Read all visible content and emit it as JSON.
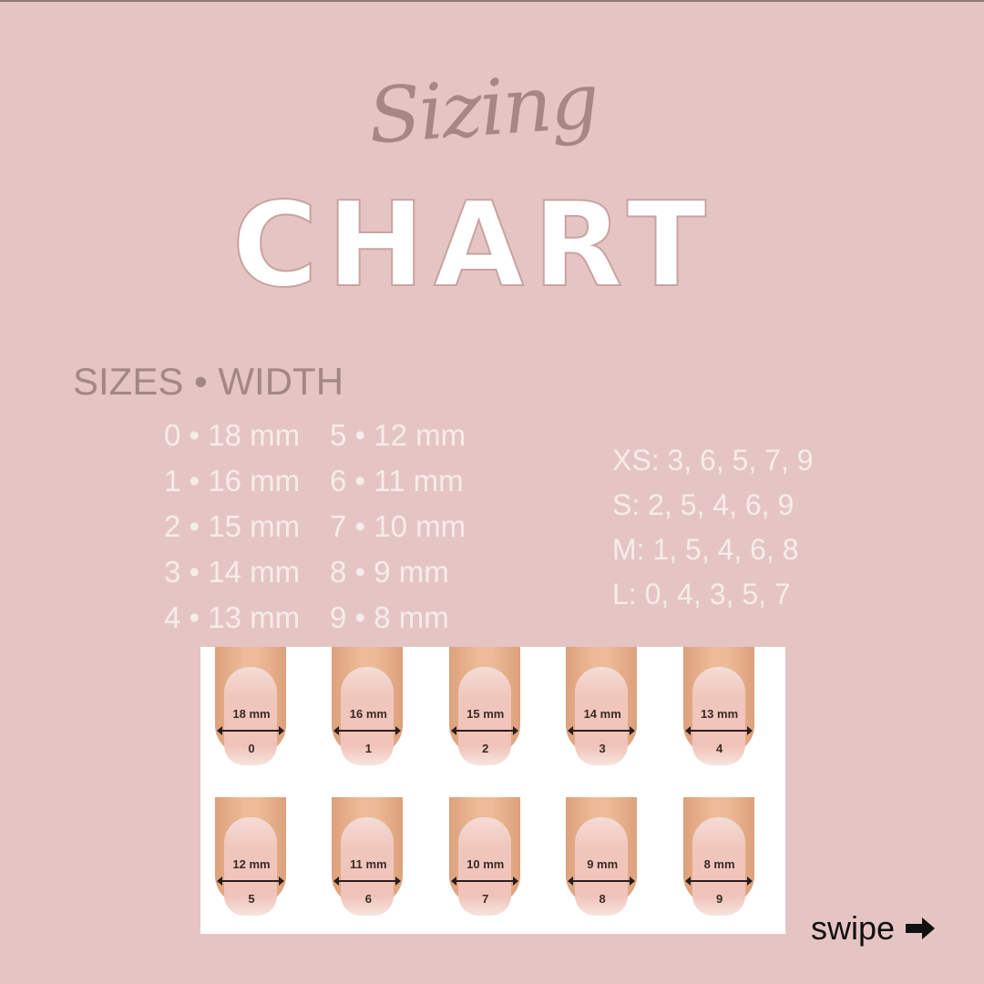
{
  "title": {
    "script": "Sizing",
    "main": "CHART"
  },
  "sizes_heading": "SIZES • WIDTH",
  "sizes": [
    {
      "label": "0 • 18 mm"
    },
    {
      "label": "5 • 12 mm"
    },
    {
      "label": "1 • 16 mm"
    },
    {
      "label": "6 • 11 mm"
    },
    {
      "label": "2 • 15 mm"
    },
    {
      "label": "7 • 10 mm"
    },
    {
      "label": "3 • 14 mm"
    },
    {
      "label": "8 • 9 mm"
    },
    {
      "label": "4 • 13 mm"
    },
    {
      "label": "9 • 8 mm"
    }
  ],
  "sets": [
    "XS: 3, 6, 5, 7, 9",
    "S: 2, 5, 4, 6, 9",
    "M: 1, 5, 4, 6, 8",
    "L: 0, 4, 3, 5, 7"
  ],
  "nails": [
    [
      {
        "mm": "18 mm",
        "num": "0"
      },
      {
        "mm": "16 mm",
        "num": "1"
      },
      {
        "mm": "15 mm",
        "num": "2"
      },
      {
        "mm": "14 mm",
        "num": "3"
      },
      {
        "mm": "13 mm",
        "num": "4"
      }
    ],
    [
      {
        "mm": "12 mm",
        "num": "5"
      },
      {
        "mm": "11 mm",
        "num": "6"
      },
      {
        "mm": "10 mm",
        "num": "7"
      },
      {
        "mm": "9 mm",
        "num": "8"
      },
      {
        "mm": "8 mm",
        "num": "9"
      }
    ]
  ],
  "swipe": {
    "label": "swipe",
    "icon": "arrow-right-icon"
  },
  "colors": {
    "background": "#e5c5c3",
    "heading": "#a58686",
    "text": "#f6ecea"
  }
}
